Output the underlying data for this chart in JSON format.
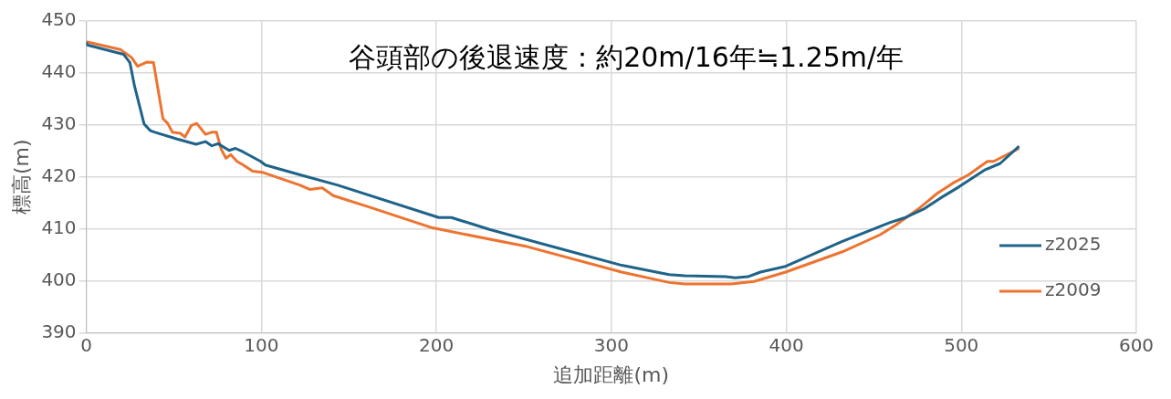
{
  "chart_data": {
    "type": "line",
    "xlabel": "追加距離(m)",
    "ylabel": "標高(m)",
    "annotations": [
      "谷頭部の後退速度：約20m/16年≒1.25m/年"
    ],
    "xlim": [
      0,
      600
    ],
    "xticks": [
      0,
      100,
      200,
      300,
      400,
      500,
      600
    ],
    "ylim": [
      390,
      450
    ],
    "yticks": [
      390,
      400,
      410,
      420,
      430,
      440,
      450
    ],
    "grid": true,
    "legend": "right",
    "marker": "none",
    "line_style": "solid",
    "series": [
      {
        "name": "z2025",
        "color": "#1f6389",
        "x": [
          0,
          0.5,
          21.3,
          24.9,
          27.6,
          33,
          36.6,
          39.2,
          51.9,
          62.7,
          68.1,
          71.7,
          75.3,
          81.6,
          85.2,
          89.7,
          99.6,
          102.3,
          122.2,
          143.8,
          201.4,
          208.6,
          230.3,
          280.7,
          306,
          333,
          342,
          365.4,
          370.8,
          378,
          385.2,
          399.6,
          432,
          459,
          468.1,
          478.9,
          487.9,
          498.7,
          513.1,
          522.2,
          533
        ],
        "values": [
          445.9,
          445.4,
          443.6,
          442,
          437.4,
          430.2,
          428.9,
          428.6,
          427.3,
          426.3,
          426.8,
          426,
          426.4,
          425.1,
          425.5,
          424.8,
          423,
          422.3,
          420.4,
          418.4,
          412.2,
          412.2,
          409.9,
          405.3,
          403,
          401.2,
          401,
          400.8,
          400.6,
          400.8,
          401.7,
          402.8,
          407.6,
          411.2,
          412.2,
          413.9,
          415.9,
          418.1,
          421.3,
          422.6,
          425.9
        ]
      },
      {
        "name": "z2009",
        "color": "#ed7430",
        "x": [
          0,
          19.5,
          25.8,
          29.3,
          34.8,
          38.4,
          43.8,
          46.5,
          49.2,
          53.7,
          56.4,
          60,
          63.1,
          68.1,
          71.7,
          74.4,
          77.1,
          79.8,
          82.5,
          86.1,
          89.7,
          95.1,
          100.5,
          122.2,
          127.6,
          134.8,
          141.1,
          161.8,
          197.8,
          251.9,
          305.9,
          333,
          342,
          368.5,
          381.6,
          399.6,
          432,
          453.7,
          462.7,
          475.3,
          486.1,
          495.1,
          504.1,
          514.9,
          518.5,
          533
        ],
        "values": [
          446,
          444.5,
          443,
          441.3,
          442.1,
          442,
          431.2,
          430.3,
          428.6,
          428.4,
          427.7,
          429.9,
          430.3,
          428.2,
          428.6,
          428.6,
          425.3,
          423.6,
          424.3,
          423,
          422.3,
          421.1,
          420.9,
          418.4,
          417.6,
          417.9,
          416.4,
          414.2,
          410.2,
          406.6,
          401.7,
          399.7,
          399.4,
          399.4,
          399.9,
          401.7,
          405.6,
          408.9,
          410.8,
          413.8,
          416.8,
          418.8,
          420.4,
          423,
          423,
          425.5
        ]
      }
    ]
  }
}
